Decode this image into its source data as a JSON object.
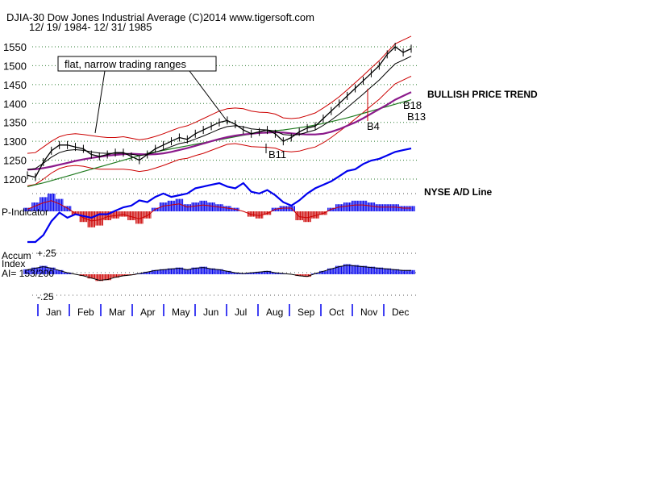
{
  "header": {
    "line1": "DJIA-30  Dow Jones Industrial Average   (C)2014 www.tigersoft.com",
    "line2": "12/ 19/ 1984- 12/ 31/ 1985"
  },
  "colors": {
    "price": "#000000",
    "ma_red": "#cc0000",
    "ma_purple": "#8b1a8b",
    "ma_green": "#1f7a1f",
    "ad_line": "#0000ee",
    "positive": "#0000ee",
    "negative": "#cc0000",
    "grid": "#2e7d32"
  },
  "chart_data": [
    {
      "type": "line",
      "panel": "price",
      "title": "DJIA-30  Dow Jones Industrial Average",
      "ylim": [
        1185,
        1575
      ],
      "yticks": [
        "1550",
        "1500",
        "1450",
        "1400",
        "1350",
        "1300",
        "1250",
        "1200"
      ],
      "ytick_values": [
        1550,
        1500,
        1450,
        1400,
        1350,
        1300,
        1250,
        1200
      ],
      "months": [
        "Jan",
        "Feb",
        "Mar",
        "Apr",
        "May",
        "Jun",
        "Jul",
        "Aug",
        "Sep",
        "Oct",
        "Nov",
        "Dec"
      ],
      "x": [
        0,
        0.25,
        0.5,
        0.75,
        1,
        1.25,
        1.5,
        1.75,
        2,
        2.25,
        2.5,
        2.75,
        3,
        3.25,
        3.5,
        3.75,
        4,
        4.25,
        4.5,
        4.75,
        5,
        5.25,
        5.5,
        5.75,
        6,
        6.25,
        6.5,
        6.75,
        7,
        7.25,
        7.5,
        7.75,
        8,
        8.25,
        8.5,
        8.75,
        9,
        9.25,
        9.5,
        9.75,
        10,
        10.25,
        10.5,
        10.75,
        11,
        11.25,
        11.5,
        11.75,
        12
      ],
      "series": [
        {
          "name": "DJIA",
          "values": [
            1210,
            1205,
            1245,
            1275,
            1290,
            1290,
            1285,
            1280,
            1265,
            1260,
            1265,
            1270,
            1270,
            1260,
            1250,
            1265,
            1280,
            1290,
            1300,
            1310,
            1305,
            1320,
            1330,
            1340,
            1350,
            1355,
            1345,
            1330,
            1320,
            1325,
            1330,
            1320,
            1300,
            1310,
            1325,
            1335,
            1340,
            1360,
            1380,
            1400,
            1420,
            1440,
            1460,
            1480,
            1500,
            1530,
            1550,
            1535,
            1545
          ]
        },
        {
          "name": "",
          "values": [
            1225,
            1228,
            1242,
            1258,
            1270,
            1276,
            1278,
            1276,
            1272,
            1269,
            1268,
            1268,
            1269,
            1266,
            1262,
            1265,
            1271,
            1278,
            1286,
            1294,
            1298,
            1306,
            1314,
            1323,
            1332,
            1339,
            1341,
            1338,
            1333,
            1331,
            1330,
            1327,
            1318,
            1316,
            1318,
            1324,
            1330,
            1342,
            1356,
            1372,
            1389,
            1407,
            1425,
            1444,
            1462,
            1484,
            1505,
            1515,
            1525
          ]
        },
        {
          "name": "",
          "values": [
            1225,
            1226,
            1229,
            1233,
            1238,
            1243,
            1248,
            1252,
            1256,
            1259,
            1262,
            1264,
            1266,
            1267,
            1266,
            1265,
            1266,
            1268,
            1272,
            1277,
            1282,
            1288,
            1294,
            1300,
            1306,
            1311,
            1315,
            1318,
            1320,
            1322,
            1323,
            1324,
            1323,
            1321,
            1319,
            1318,
            1318,
            1320,
            1325,
            1332,
            1341,
            1350,
            1361,
            1373,
            1385,
            1397,
            1410,
            1420,
            1430
          ]
        },
        {
          "name": "",
          "values": [
            1180,
            1185,
            1190,
            1196,
            1202,
            1208,
            1214,
            1220,
            1226,
            1232,
            1238,
            1244,
            1250,
            1256,
            1262,
            1268,
            1272,
            1276,
            1280,
            1284,
            1288,
            1292,
            1296,
            1300,
            1304,
            1308,
            1312,
            1316,
            1319,
            1322,
            1325,
            1328,
            1330,
            1333,
            1336,
            1339,
            1343,
            1347,
            1352,
            1357,
            1362,
            1368,
            1374,
            1380,
            1386,
            1392,
            1398,
            1404,
            1410
          ]
        },
        {
          "name": "",
          "values": [
            1268,
            1270,
            1285,
            1300,
            1312,
            1318,
            1320,
            1318,
            1315,
            1312,
            1310,
            1310,
            1312,
            1308,
            1304,
            1307,
            1313,
            1320,
            1328,
            1336,
            1341,
            1350,
            1360,
            1370,
            1380,
            1386,
            1388,
            1386,
            1380,
            1377,
            1376,
            1372,
            1362,
            1360,
            1362,
            1368,
            1375,
            1388,
            1402,
            1418,
            1436,
            1455,
            1474,
            1494,
            1513,
            1536,
            1558,
            1568,
            1578
          ]
        },
        {
          "name": "",
          "values": [
            1182,
            1186,
            1200,
            1216,
            1228,
            1234,
            1236,
            1234,
            1229,
            1226,
            1226,
            1226,
            1226,
            1224,
            1220,
            1223,
            1229,
            1236,
            1244,
            1252,
            1255,
            1262,
            1268,
            1276,
            1284,
            1292,
            1294,
            1290,
            1286,
            1285,
            1284,
            1282,
            1274,
            1272,
            1274,
            1280,
            1285,
            1296,
            1310,
            1326,
            1342,
            1359,
            1376,
            1394,
            1411,
            1432,
            1452,
            1462,
            1472
          ]
        }
      ],
      "annotations": [
        "flat, narrow trading ranges",
        "BULLISH PRICE TREND",
        "B18",
        "B13",
        "B4",
        "B11"
      ]
    },
    {
      "type": "line",
      "panel": "breadth",
      "series": [
        {
          "name": "NYSE A/D Line",
          "values": [
            -60,
            -60,
            -40,
            0,
            25,
            10,
            20,
            15,
            10,
            20,
            20,
            30,
            40,
            45,
            60,
            55,
            70,
            80,
            70,
            75,
            80,
            95,
            100,
            105,
            110,
            100,
            95,
            110,
            85,
            80,
            90,
            75,
            55,
            45,
            60,
            80,
            95,
            105,
            115,
            130,
            145,
            150,
            165,
            175,
            180,
            190,
            200,
            205,
            210
          ]
        }
      ]
    },
    {
      "type": "bar",
      "panel": "oscillator",
      "series": [
        {
          "name": "P-Indicator",
          "values": [
            2,
            5,
            8,
            10,
            7,
            3,
            -2,
            -6,
            -9,
            -8,
            -5,
            -4,
            -3,
            -5,
            -7,
            -4,
            2,
            5,
            6,
            7,
            4,
            5,
            6,
            5,
            4,
            3,
            2,
            0,
            -3,
            -4,
            -2,
            2,
            3,
            3,
            -5,
            -6,
            -4,
            -2,
            2,
            4,
            5,
            6,
            6,
            5,
            4,
            4,
            4,
            3,
            3
          ]
        },
        {
          "name": "Accum Index",
          "values": [
            0.06,
            0.08,
            0.1,
            0.08,
            0.05,
            0.02,
            0,
            -0.02,
            -0.05,
            -0.08,
            -0.07,
            -0.04,
            -0.02,
            -0.01,
            0.01,
            0.03,
            0.05,
            0.06,
            0.07,
            0.08,
            0.06,
            0.08,
            0.09,
            0.07,
            0.06,
            0.04,
            0.02,
            0.01,
            0.02,
            0.03,
            0.04,
            0.02,
            0.01,
            0.0,
            -0.02,
            -0.03,
            0.01,
            0.04,
            0.07,
            0.1,
            0.12,
            0.11,
            0.1,
            0.09,
            0.08,
            0.07,
            0.06,
            0.05,
            0.05
          ]
        }
      ],
      "labels": {
        "p_indicator": "P-Indicator",
        "accum_line1": "Accum",
        "accum_line2": "Index",
        "ai_value": "AI= 153/200",
        "accum_top": "+.25",
        "accum_bottom": "-.25",
        "ad_label": "NYSE A/D Line"
      },
      "ylim": [
        -0.25,
        0.25
      ]
    }
  ]
}
